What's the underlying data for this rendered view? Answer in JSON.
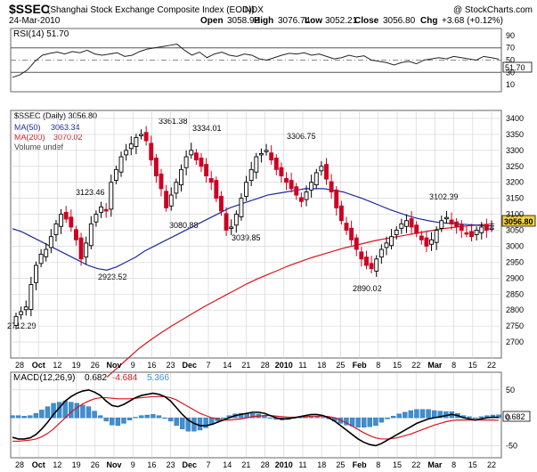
{
  "header": {
    "symbol": "$SSEC",
    "name": "(Shanghai Stock Exchange Composite Index (EOD))",
    "exchange": "INDX",
    "date": "24-Mar-2010",
    "copyright": "@ StockCharts.com",
    "ohlc": {
      "open_label": "Open",
      "open": "3058.92",
      "high_label": "High",
      "high": "3076.74",
      "low_label": "Low",
      "low": "3052.21",
      "close_label": "Close",
      "close": "3056.80",
      "chg_label": "Chg",
      "chg": "+3.68 (+0.12%)"
    }
  },
  "colors": {
    "up": "#000000",
    "down": "#cc0022",
    "ma50": "#1f2a9a",
    "ma200": "#d8141c",
    "macd": "#000000",
    "signal": "#d8141c",
    "hist": "#3d8fd1",
    "grid": "#d0d0d0",
    "price_tag": "#f4d23b"
  },
  "chart_data": [
    {
      "type": "line",
      "title": "RSI(14) 51.70",
      "ylim": [
        0,
        100
      ],
      "y_ticks": [
        "90",
        "70",
        "50",
        "30",
        "10"
      ],
      "bands": [
        70,
        30
      ],
      "last_label": "51.70",
      "series": [
        {
          "name": "RSI(14)",
          "values": [
            22,
            26,
            34,
            48,
            58,
            61,
            63,
            60,
            64,
            62,
            66,
            60,
            58,
            60,
            62,
            56,
            58,
            64,
            68,
            70,
            72,
            74,
            76,
            66,
            58,
            63,
            54,
            60,
            63,
            58,
            56,
            60,
            58,
            52,
            50,
            54,
            58,
            61,
            60,
            62,
            58,
            60,
            56,
            52,
            54,
            58,
            55,
            57,
            50,
            48,
            46,
            42,
            46,
            48,
            44,
            50,
            52,
            54,
            52,
            56,
            54,
            52,
            50,
            56,
            54,
            51.7
          ]
        }
      ]
    },
    {
      "type": "candlestick",
      "legend": [
        {
          "label": "$SSEC (Daily) 3056.80",
          "value_label": ""
        },
        {
          "label": "MA(50)",
          "value_label": "3063.34"
        },
        {
          "label": "MA(200)",
          "value_label": "3070.02"
        },
        {
          "label": "Volume undef",
          "value_label": ""
        }
      ],
      "ylim": [
        2650,
        3425
      ],
      "y_ticks": [
        "3400",
        "3350",
        "3300",
        "3250",
        "3200",
        "3150",
        "3100",
        "3050",
        "3000",
        "2950",
        "2900",
        "2850",
        "2800",
        "2750",
        "2700"
      ],
      "last_price_label": "3056.80",
      "annotations": [
        "3361.38",
        "3334.01",
        "3306.75",
        "3123.46",
        "3102.39",
        "3080.88",
        "3039.85",
        "2923.52",
        "2890.02",
        "2712.29"
      ],
      "x_labels": [
        "28",
        "Oct",
        "12",
        "19",
        "26",
        "Nov",
        "9",
        "16",
        "23",
        "Dec",
        "7",
        "14",
        "21",
        "28",
        "2010",
        "11",
        "18",
        "25",
        "Feb",
        "8",
        "15",
        "22",
        "Mar",
        "8",
        "15",
        "22"
      ],
      "closes": [
        2780,
        2795,
        2810,
        2880,
        2940,
        2975,
        2990,
        3030,
        3070,
        3100,
        3085,
        3060,
        3020,
        2960,
        3010,
        3070,
        3100,
        3123,
        3110,
        3200,
        3240,
        3280,
        3300,
        3320,
        3340,
        3350,
        3330,
        3270,
        3220,
        3180,
        3120,
        3160,
        3200,
        3240,
        3280,
        3300,
        3270,
        3250,
        3220,
        3200,
        3150,
        3110,
        3050,
        3060,
        3100,
        3150,
        3200,
        3240,
        3280,
        3290,
        3300,
        3270,
        3240,
        3220,
        3200,
        3180,
        3160,
        3140,
        3170,
        3200,
        3230,
        3250,
        3210,
        3170,
        3120,
        3080,
        3050,
        3020,
        2990,
        2960,
        2940,
        2930,
        2960,
        2990,
        3010,
        3030,
        3050,
        3070,
        3080,
        3060,
        3040,
        3020,
        3000,
        3020,
        3050,
        3080,
        3090,
        3070,
        3060,
        3050,
        3040,
        3030,
        3050,
        3060,
        3050,
        3056.8
      ],
      "ma50": [
        3055,
        3045,
        3030,
        3015,
        3000,
        2985,
        2970,
        2955,
        2940,
        2930,
        2925,
        2935,
        2950,
        2965,
        2985,
        3000,
        3015,
        3030,
        3045,
        3060,
        3075,
        3090,
        3105,
        3120,
        3130,
        3140,
        3150,
        3160,
        3165,
        3170,
        3175,
        3180,
        3180,
        3180,
        3175,
        3170,
        3160,
        3150,
        3138,
        3126,
        3114,
        3104,
        3094,
        3086,
        3080,
        3075,
        3072,
        3070,
        3068,
        3066,
        3064,
        3063.34
      ],
      "ma200": [
        2590,
        2620,
        2650,
        2680,
        2705,
        2728,
        2750,
        2770,
        2790,
        2810,
        2828,
        2846,
        2864,
        2882,
        2898,
        2912,
        2926,
        2940,
        2952,
        2964,
        2974,
        2984,
        2994,
        3002,
        3010,
        3018,
        3024,
        3030,
        3036,
        3042,
        3048,
        3054,
        3058,
        3062,
        3065,
        3068,
        3070.02
      ]
    },
    {
      "type": "bar",
      "title": "MACD(12,26,9) 0.682, -4.684, 5.366",
      "title_parts": [
        "MACD(12,26,9)",
        "0.682",
        "-4.684",
        "5.366"
      ],
      "ylim": [
        -70,
        80
      ],
      "y_ticks": [
        "50",
        "0",
        "-50"
      ],
      "last_label": "0.682",
      "x_labels": [
        "28",
        "Oct",
        "12",
        "19",
        "26",
        "Nov",
        "9",
        "16",
        "23",
        "Dec",
        "7",
        "14",
        "21",
        "28",
        "2010",
        "11",
        "18",
        "25",
        "Feb",
        "8",
        "15",
        "22",
        "Mar",
        "8",
        "15",
        "22"
      ],
      "series": [
        {
          "name": "MACD",
          "values": [
            -35,
            -38,
            -38,
            -36,
            -30,
            -20,
            -8,
            6,
            18,
            30,
            38,
            44,
            48,
            50,
            46,
            40,
            30,
            22,
            20,
            24,
            30,
            36,
            40,
            42,
            44,
            42,
            38,
            30,
            18,
            6,
            -4,
            -10,
            -14,
            -14,
            -12,
            -8,
            -4,
            0,
            4,
            6,
            8,
            10,
            10,
            8,
            4,
            0,
            -2,
            -2,
            0,
            2,
            4,
            6,
            6,
            4,
            0,
            -6,
            -14,
            -22,
            -30,
            -38,
            -44,
            -48,
            -50,
            -46,
            -40,
            -34,
            -28,
            -22,
            -16,
            -10,
            -6,
            -2,
            0,
            2,
            4,
            6,
            4,
            0,
            -2,
            -4,
            -2,
            0,
            1,
            0.682
          ]
        },
        {
          "name": "Signal",
          "values": [
            -42,
            -42,
            -41,
            -40,
            -38,
            -34,
            -28,
            -20,
            -10,
            0,
            10,
            18,
            25,
            30,
            34,
            36,
            36,
            35,
            34,
            34,
            34,
            35,
            36,
            37,
            38,
            38,
            38,
            36,
            32,
            26,
            20,
            14,
            8,
            4,
            0,
            -2,
            -4,
            -4,
            -3,
            -2,
            0,
            2,
            3,
            4,
            4,
            3,
            2,
            1,
            1,
            1,
            2,
            3,
            3,
            3,
            2,
            0,
            -4,
            -9,
            -15,
            -21,
            -27,
            -32,
            -36,
            -38,
            -38,
            -37,
            -35,
            -32,
            -29,
            -25,
            -21,
            -17,
            -13,
            -10,
            -7,
            -5,
            -4,
            -4,
            -4,
            -4,
            -4,
            -4,
            -4,
            -4.684
          ]
        },
        {
          "name": "Histogram",
          "values": [
            4,
            4,
            3,
            4,
            8,
            14,
            20,
            26,
            28,
            30,
            28,
            26,
            23,
            20,
            12,
            4,
            -6,
            -13,
            -14,
            -10,
            -4,
            1,
            4,
            5,
            6,
            4,
            0,
            -6,
            -14,
            -20,
            -24,
            -24,
            -22,
            -18,
            -12,
            -6,
            0,
            4,
            7,
            8,
            8,
            8,
            7,
            4,
            0,
            -3,
            -4,
            -3,
            -1,
            1,
            2,
            3,
            3,
            1,
            -2,
            -6,
            -10,
            -13,
            -15,
            -17,
            -17,
            -16,
            -14,
            -8,
            -2,
            3,
            7,
            10,
            13,
            15,
            15,
            15,
            13,
            12,
            11,
            11,
            8,
            4,
            2,
            0,
            2,
            4,
            5,
            5.366
          ]
        }
      ]
    }
  ]
}
